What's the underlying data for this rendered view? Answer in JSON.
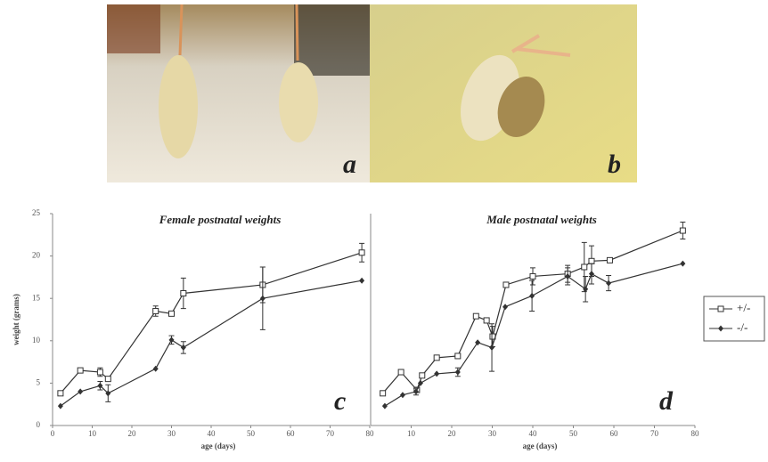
{
  "photos": [
    {
      "label": "a"
    },
    {
      "label": "b"
    }
  ],
  "chart_data": [
    {
      "type": "line",
      "title": "Female postnatal weights",
      "panel_label": "c",
      "x_label": "age (days)",
      "y_label": "weight (grams)",
      "xlim": [
        0,
        80
      ],
      "xticks": [
        0,
        10,
        20,
        30,
        40,
        50,
        60,
        70,
        80
      ],
      "ylim": [
        0,
        25
      ],
      "yticks": [
        0,
        5,
        10,
        15,
        20,
        25
      ],
      "series": [
        {
          "name": "+/-",
          "color": "#333333",
          "marker": "open-square",
          "x": [
            2,
            7,
            12,
            14,
            26,
            30,
            33,
            53,
            78
          ],
          "values": [
            3.8,
            6.5,
            6.3,
            5.5,
            13.5,
            13.2,
            15.6,
            16.6,
            20.4
          ],
          "errors": [
            null,
            null,
            0.5,
            null,
            0.6,
            null,
            1.8,
            2.1,
            1.1
          ]
        },
        {
          "name": "-/-",
          "color": "#333333",
          "marker": "diamond",
          "x": [
            2,
            7,
            12,
            14,
            26,
            30,
            33,
            53,
            78
          ],
          "values": [
            2.3,
            4.0,
            4.7,
            3.8,
            6.7,
            10.1,
            9.2,
            15.0,
            17.1
          ],
          "errors": [
            null,
            null,
            0.5,
            1.0,
            null,
            0.5,
            0.7,
            3.7,
            null
          ]
        }
      ]
    },
    {
      "type": "line",
      "title": "Male postnatal weights",
      "panel_label": "d",
      "x_label": "age (days)",
      "xlim": [
        0,
        80
      ],
      "xticks": [
        10,
        20,
        30,
        40,
        50,
        60,
        70,
        80
      ],
      "ylim": [
        0,
        25
      ],
      "series": [
        {
          "color": "#333333",
          "marker": "open-square",
          "x": [
            3,
            7.5,
            11.4,
            12.7,
            16.3,
            21.5,
            26,
            28.6,
            30.1,
            33.4,
            40,
            48.6,
            52.7,
            54.5,
            59,
            77
          ],
          "values": [
            3.8,
            6.3,
            4.2,
            5.9,
            8.0,
            8.2,
            12.9,
            12.4,
            10.5,
            16.6,
            17.6,
            17.9,
            18.7,
            19.4,
            19.5,
            23.0
          ],
          "errors": [
            null,
            null,
            null,
            null,
            null,
            null,
            null,
            null,
            1.2,
            null,
            1.0,
            1.0,
            2.9,
            1.8,
            null,
            1.0
          ]
        },
        {
          "color": "#333333",
          "marker": "diamond",
          "x": [
            3.5,
            7.9,
            11.2,
            12.3,
            16.3,
            21.5,
            26.4,
            29.9,
            33.2,
            39.8,
            48.6,
            53,
            54.5,
            58.7,
            77
          ],
          "values": [
            2.3,
            3.6,
            4.0,
            5.0,
            6.1,
            6.3,
            9.8,
            9.2,
            14.0,
            15.3,
            17.6,
            16.1,
            17.9,
            16.8,
            19.1
          ],
          "errors": [
            null,
            null,
            0.4,
            null,
            null,
            0.5,
            null,
            2.8,
            null,
            1.8,
            1.0,
            1.5,
            1.2,
            0.9,
            null
          ]
        }
      ]
    }
  ]
}
